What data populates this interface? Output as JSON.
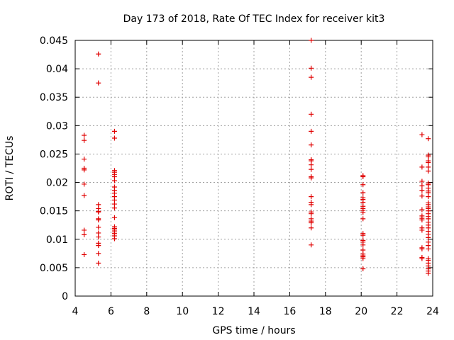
{
  "chart_data": {
    "type": "scatter",
    "title": "Day 173 of 2018, Rate Of TEC Index for receiver kit3",
    "xlabel": "GPS time / hours",
    "ylabel": "ROTI / TECUs",
    "xlim": [
      4,
      24
    ],
    "ylim": [
      0,
      0.045
    ],
    "xticks": [
      "4",
      "6",
      "8",
      "10",
      "12",
      "14",
      "16",
      "18",
      "20",
      "22",
      "24"
    ],
    "yticks": [
      "0",
      "0.005",
      "0.01",
      "0.015",
      "0.02",
      "0.025",
      "0.03",
      "0.035",
      "0.04",
      "0.045"
    ],
    "grid": true,
    "marker": "plus",
    "color": "#e00000",
    "points": [
      [
        4.5,
        0.0283
      ],
      [
        4.5,
        0.0274
      ],
      [
        4.5,
        0.0241
      ],
      [
        4.5,
        0.0225
      ],
      [
        4.5,
        0.0222
      ],
      [
        4.5,
        0.0197
      ],
      [
        4.5,
        0.0177
      ],
      [
        4.5,
        0.0116
      ],
      [
        4.5,
        0.0108
      ],
      [
        4.5,
        0.0073
      ],
      [
        5.3,
        0.0426
      ],
      [
        5.3,
        0.0375
      ],
      [
        5.3,
        0.0161
      ],
      [
        5.3,
        0.0154
      ],
      [
        5.3,
        0.0149
      ],
      [
        5.3,
        0.0148
      ],
      [
        5.3,
        0.0136
      ],
      [
        5.3,
        0.0134
      ],
      [
        5.3,
        0.0121
      ],
      [
        5.3,
        0.0111
      ],
      [
        5.3,
        0.0104
      ],
      [
        5.3,
        0.0093
      ],
      [
        5.3,
        0.0089
      ],
      [
        5.3,
        0.0075
      ],
      [
        5.3,
        0.0058
      ],
      [
        6.2,
        0.029
      ],
      [
        6.2,
        0.0278
      ],
      [
        6.2,
        0.0221
      ],
      [
        6.2,
        0.0218
      ],
      [
        6.2,
        0.0214
      ],
      [
        6.2,
        0.021
      ],
      [
        6.2,
        0.0203
      ],
      [
        6.2,
        0.0192
      ],
      [
        6.2,
        0.0186
      ],
      [
        6.2,
        0.0181
      ],
      [
        6.2,
        0.0175
      ],
      [
        6.2,
        0.0169
      ],
      [
        6.2,
        0.0162
      ],
      [
        6.2,
        0.0155
      ],
      [
        6.2,
        0.0138
      ],
      [
        6.2,
        0.0122
      ],
      [
        6.2,
        0.0119
      ],
      [
        6.2,
        0.0116
      ],
      [
        6.2,
        0.0113
      ],
      [
        6.2,
        0.011
      ],
      [
        6.2,
        0.0106
      ],
      [
        6.2,
        0.0101
      ],
      [
        17.2,
        0.045
      ],
      [
        17.2,
        0.0401
      ],
      [
        17.2,
        0.0385
      ],
      [
        17.2,
        0.032
      ],
      [
        17.2,
        0.029
      ],
      [
        17.2,
        0.0266
      ],
      [
        17.2,
        0.024
      ],
      [
        17.2,
        0.0238
      ],
      [
        17.2,
        0.0231
      ],
      [
        17.2,
        0.0223
      ],
      [
        17.2,
        0.021
      ],
      [
        17.2,
        0.0208
      ],
      [
        17.2,
        0.0175
      ],
      [
        17.2,
        0.0165
      ],
      [
        17.2,
        0.0161
      ],
      [
        17.2,
        0.0148
      ],
      [
        17.2,
        0.0145
      ],
      [
        17.2,
        0.0136
      ],
      [
        17.2,
        0.0132
      ],
      [
        17.2,
        0.0129
      ],
      [
        17.2,
        0.012
      ],
      [
        17.2,
        0.009
      ],
      [
        20.1,
        0.0212
      ],
      [
        20.1,
        0.021
      ],
      [
        20.1,
        0.0196
      ],
      [
        20.1,
        0.0182
      ],
      [
        20.1,
        0.0173
      ],
      [
        20.1,
        0.017
      ],
      [
        20.1,
        0.0165
      ],
      [
        20.1,
        0.0158
      ],
      [
        20.1,
        0.0154
      ],
      [
        20.1,
        0.0151
      ],
      [
        20.1,
        0.0147
      ],
      [
        20.1,
        0.0136
      ],
      [
        20.1,
        0.011
      ],
      [
        20.1,
        0.0107
      ],
      [
        20.1,
        0.0098
      ],
      [
        20.1,
        0.0095
      ],
      [
        20.1,
        0.009
      ],
      [
        20.1,
        0.0081
      ],
      [
        20.1,
        0.0074
      ],
      [
        20.1,
        0.0071
      ],
      [
        20.1,
        0.0069
      ],
      [
        20.1,
        0.0066
      ],
      [
        20.1,
        0.0048
      ],
      [
        23.4,
        0.0284
      ],
      [
        23.4,
        0.0227
      ],
      [
        23.4,
        0.0202
      ],
      [
        23.4,
        0.0194
      ],
      [
        23.4,
        0.0186
      ],
      [
        23.4,
        0.0176
      ],
      [
        23.4,
        0.0152
      ],
      [
        23.4,
        0.0141
      ],
      [
        23.4,
        0.0137
      ],
      [
        23.4,
        0.0134
      ],
      [
        23.4,
        0.012
      ],
      [
        23.4,
        0.0116
      ],
      [
        23.4,
        0.0085
      ],
      [
        23.4,
        0.0083
      ],
      [
        23.4,
        0.0068
      ],
      [
        23.4,
        0.0066
      ],
      [
        23.75,
        0.0277
      ],
      [
        23.75,
        0.0248
      ],
      [
        23.75,
        0.0245
      ],
      [
        23.75,
        0.0238
      ],
      [
        23.75,
        0.0235
      ],
      [
        23.75,
        0.0227
      ],
      [
        23.75,
        0.022
      ],
      [
        23.75,
        0.0199
      ],
      [
        23.75,
        0.0196
      ],
      [
        23.75,
        0.019
      ],
      [
        23.75,
        0.0185
      ],
      [
        23.75,
        0.0182
      ],
      [
        23.75,
        0.0175
      ],
      [
        23.75,
        0.0164
      ],
      [
        23.75,
        0.0161
      ],
      [
        23.75,
        0.0157
      ],
      [
        23.75,
        0.0154
      ],
      [
        23.75,
        0.015
      ],
      [
        23.75,
        0.0145
      ],
      [
        23.75,
        0.014
      ],
      [
        23.75,
        0.0136
      ],
      [
        23.75,
        0.013
      ],
      [
        23.75,
        0.0125
      ],
      [
        23.75,
        0.012
      ],
      [
        23.75,
        0.0114
      ],
      [
        23.75,
        0.0109
      ],
      [
        23.75,
        0.0103
      ],
      [
        23.75,
        0.0095
      ],
      [
        23.75,
        0.0089
      ],
      [
        23.75,
        0.0083
      ],
      [
        23.75,
        0.0066
      ],
      [
        23.75,
        0.0063
      ],
      [
        23.75,
        0.0058
      ],
      [
        23.75,
        0.0053
      ],
      [
        23.75,
        0.0048
      ],
      [
        23.75,
        0.0044
      ],
      [
        23.75,
        0.004
      ]
    ]
  }
}
